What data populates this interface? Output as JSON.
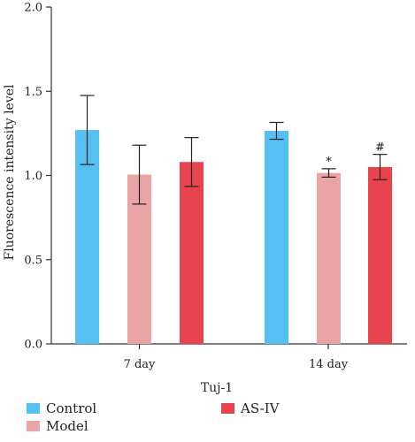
{
  "chart_data": {
    "type": "bar",
    "categories": [
      "7 day",
      "14 day"
    ],
    "xlabel": "Tuj-1",
    "ylabel": "Fluorescence intensity level",
    "ylim": [
      0,
      2.0
    ],
    "yticks": [
      "0.0",
      "0.5",
      "1.0",
      "1.5",
      "2.0"
    ],
    "grid": false,
    "legend_position": "bottom-left",
    "series": [
      {
        "name": "Control",
        "color": "#55C1F3",
        "values": [
          1.27,
          1.265
        ],
        "errors": [
          0.205,
          0.05
        ],
        "annotations": [
          "",
          ""
        ]
      },
      {
        "name": "Model",
        "color": "#EAA4A6",
        "values": [
          1.005,
          1.015
        ],
        "errors": [
          0.175,
          0.025
        ],
        "annotations": [
          "",
          "*"
        ]
      },
      {
        "name": "AS-IV",
        "color": "#E8444F",
        "values": [
          1.08,
          1.05
        ],
        "errors": [
          0.145,
          0.075
        ],
        "annotations": [
          "",
          "#"
        ]
      }
    ]
  }
}
